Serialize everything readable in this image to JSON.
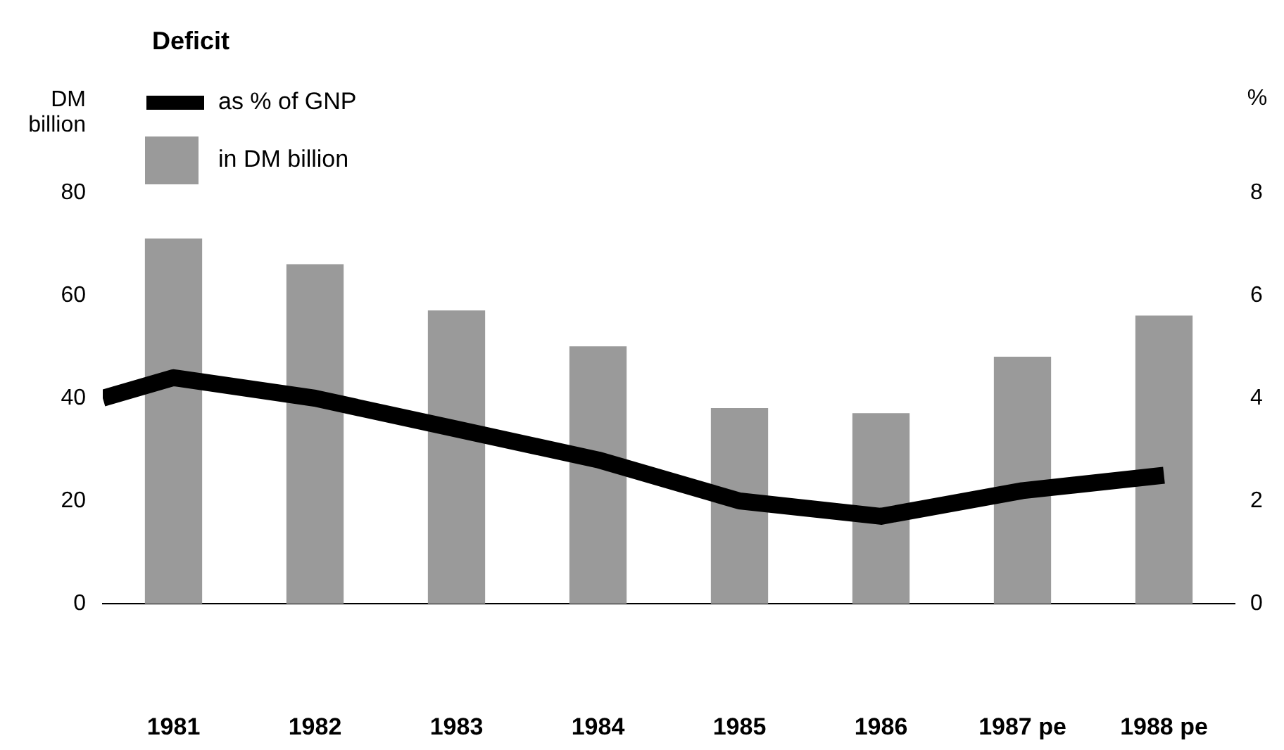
{
  "chart_data": {
    "type": "bar",
    "title": "Deficit",
    "ylabel": "DM billion",
    "y2label": "%",
    "x": [
      1981,
      1982,
      1983,
      1984,
      1985,
      1986,
      1987,
      1988
    ],
    "xlim": [
      1980.5,
      1988.5
    ],
    "xticks": [
      1981,
      1982,
      1983,
      1984,
      1985,
      1986,
      {
        "value": 1987,
        "label": "1987 pe"
      },
      {
        "value": 1988,
        "label": "1988 pe"
      }
    ],
    "ylim": [
      0,
      80
    ],
    "yticks": [
      0,
      20,
      40,
      60,
      80
    ],
    "y2lim": [
      0,
      8
    ],
    "y2ticks": [
      0,
      2,
      4,
      6,
      8
    ],
    "series": [
      {
        "name": "as % of GNP",
        "type": "line",
        "axis": "y2",
        "color": "#000000",
        "x": [
          1980.5,
          1981,
          1982,
          1983,
          1984,
          1985,
          1986,
          1987,
          1988
        ],
        "values": [
          4.0,
          4.4,
          4.0,
          3.4,
          2.8,
          2.0,
          1.7,
          2.2,
          2.5
        ]
      },
      {
        "name": "in DM billion",
        "color": "#9a9a9a",
        "values": [
          71,
          66,
          57,
          50,
          38,
          37,
          48,
          56
        ]
      }
    ],
    "legend": "top left",
    "grid": false
  }
}
